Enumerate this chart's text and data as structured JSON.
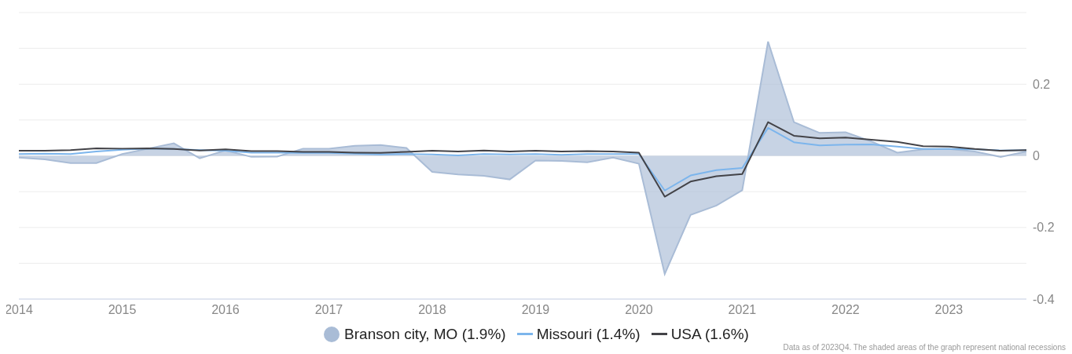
{
  "chart_data": {
    "type": "line",
    "x": [
      "2014-01",
      "2014-04",
      "2014-07",
      "2014-10",
      "2015-01",
      "2015-04",
      "2015-07",
      "2015-10",
      "2016-01",
      "2016-04",
      "2016-07",
      "2016-10",
      "2017-01",
      "2017-04",
      "2017-07",
      "2017-10",
      "2018-01",
      "2018-04",
      "2018-07",
      "2018-10",
      "2019-01",
      "2019-04",
      "2019-07",
      "2019-10",
      "2020-01",
      "2020-04",
      "2020-07",
      "2020-10",
      "2021-01",
      "2021-04",
      "2021-07",
      "2021-10",
      "2022-01",
      "2022-04",
      "2022-07",
      "2022-10",
      "2023-01",
      "2023-04",
      "2023-07",
      "2023-10"
    ],
    "series": [
      {
        "name": "Branson city, MO (1.9%)",
        "type": "area",
        "color": "#a9bcd6",
        "values": [
          -0.005,
          -0.01,
          -0.02,
          -0.02,
          0.005,
          0.02,
          0.035,
          -0.007,
          0.015,
          -0.003,
          -0.002,
          0.02,
          0.02,
          0.028,
          0.03,
          0.022,
          -0.045,
          -0.052,
          -0.056,
          -0.066,
          -0.013,
          -0.014,
          -0.018,
          -0.005,
          -0.022,
          -0.33,
          -0.165,
          -0.139,
          -0.096,
          0.319,
          0.094,
          0.064,
          0.066,
          0.04,
          0.009,
          0.018,
          0.019,
          0.012,
          -0.003,
          0.012
        ]
      },
      {
        "name": "Missouri (1.4%)",
        "color": "#7cb5ec",
        "values": [
          0.005,
          0.006,
          0.005,
          0.012,
          0.017,
          0.02,
          0.019,
          0.016,
          0.014,
          0.009,
          0.009,
          0.008,
          0.008,
          0.006,
          0.004,
          0.005,
          0.004,
          0.001,
          0.005,
          0.004,
          0.005,
          0.003,
          0.005,
          0.005,
          0.005,
          -0.097,
          -0.055,
          -0.04,
          -0.034,
          0.078,
          0.038,
          0.029,
          0.031,
          0.032,
          0.026,
          0.019,
          0.019,
          0.018,
          0.015,
          0.016
        ]
      },
      {
        "name": "USA (1.6%)",
        "color": "#434348",
        "values": [
          0.014,
          0.014,
          0.016,
          0.021,
          0.02,
          0.021,
          0.019,
          0.015,
          0.018,
          0.013,
          0.013,
          0.011,
          0.011,
          0.009,
          0.008,
          0.011,
          0.014,
          0.012,
          0.015,
          0.012,
          0.014,
          0.012,
          0.013,
          0.012,
          0.009,
          -0.114,
          -0.072,
          -0.057,
          -0.051,
          0.094,
          0.056,
          0.049,
          0.051,
          0.045,
          0.039,
          0.027,
          0.026,
          0.019,
          0.014,
          0.016
        ]
      }
    ],
    "xlim": [
      "2014-01",
      "2023-10"
    ],
    "xticks": [
      "2014",
      "2015",
      "2016",
      "2017",
      "2018",
      "2019",
      "2020",
      "2021",
      "2022",
      "2023"
    ],
    "ylim": [
      -0.4,
      0.4
    ],
    "yticks": [
      -0.4,
      {
        "value": -0.3,
        "label": null
      },
      -0.2,
      {
        "value": -0.1,
        "label": null
      },
      0,
      {
        "value": 0.1,
        "label": null
      },
      0.2,
      {
        "value": 0.3,
        "label": null
      },
      {
        "value": 0.4,
        "label": null
      }
    ],
    "grid": "y",
    "legend": "bottom",
    "marker": "none",
    "annotations": [
      "Data as of 2023Q4. The shaded areas of the graph represent national recessions"
    ]
  }
}
